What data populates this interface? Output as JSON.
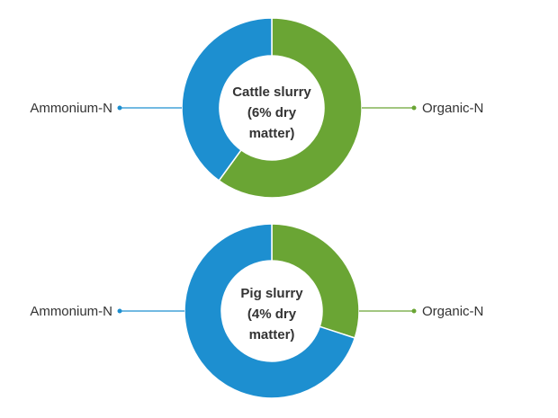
{
  "chart_data": [
    {
      "type": "donut",
      "title_lines": [
        "Cattle slurry",
        "(6% dry",
        "matter)"
      ],
      "slices": [
        {
          "label": "Organic-N",
          "value": 60,
          "color": "#6aa534"
        },
        {
          "label": "Ammonium-N",
          "value": 40,
          "color": "#1d8fd0"
        }
      ]
    },
    {
      "type": "donut",
      "title_lines": [
        "Pig slurry",
        "(4% dry",
        "matter)"
      ],
      "slices": [
        {
          "label": "Organic-N",
          "value": 30,
          "color": "#6aa534"
        },
        {
          "label": "Ammonium-N",
          "value": 70,
          "color": "#1d8fd0"
        }
      ]
    }
  ],
  "colors": {
    "organic": "#6aa534",
    "ammonium": "#1d8fd0",
    "text": "#333333"
  }
}
